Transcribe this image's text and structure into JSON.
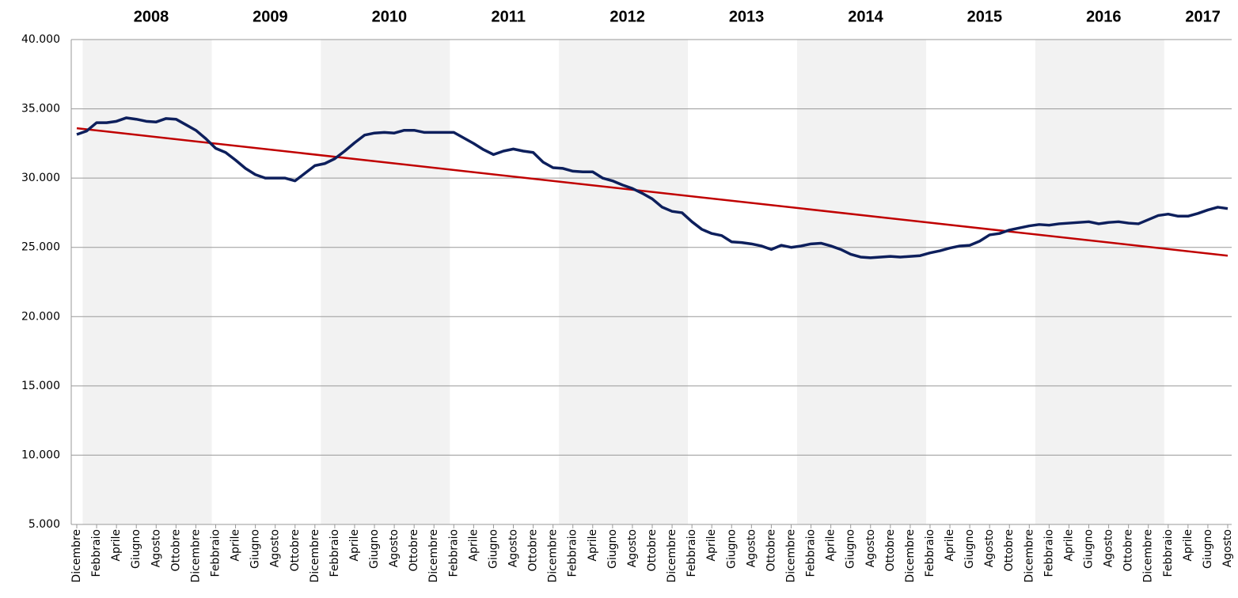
{
  "chart_data": {
    "type": "line",
    "year_labels": [
      "2008",
      "2009",
      "2010",
      "2011",
      "2012",
      "2013",
      "2014",
      "2015",
      "2016",
      "2017"
    ],
    "categories": [
      "Dicembre",
      null,
      "Febbraio",
      null,
      "Aprile",
      null,
      "Giugno",
      null,
      "Agosto",
      null,
      "Ottobre",
      null,
      "Dicembre",
      null,
      "Febbraio",
      null,
      "Aprile",
      null,
      "Giugno",
      null,
      "Agosto",
      null,
      "Ottobre",
      null,
      "Dicembre",
      null,
      "Febbraio",
      null,
      "Aprile",
      null,
      "Giugno",
      null,
      "Agosto",
      null,
      "Ottobre",
      null,
      "Dicembre",
      null,
      "Febbraio",
      null,
      "Aprile",
      null,
      "Giugno",
      null,
      "Agosto",
      null,
      "Ottobre",
      null,
      "Dicembre",
      null,
      "Febbraio",
      null,
      "Aprile",
      null,
      "Giugno",
      null,
      "Agosto",
      null,
      "Ottobre",
      null,
      "Dicembre",
      null,
      "Febbraio",
      null,
      "Aprile",
      null,
      "Giugno",
      null,
      "Agosto",
      null,
      "Ottobre",
      null,
      "Dicembre",
      null,
      "Febbraio",
      null,
      "Aprile",
      null,
      "Giugno",
      null,
      "Agosto",
      null,
      "Ottobre",
      null,
      "Dicembre",
      null,
      "Febbraio",
      null,
      "Aprile",
      null,
      "Giugno",
      null,
      "Agosto",
      null,
      "Ottobre",
      null,
      "Dicembre",
      null,
      "Febbraio",
      null,
      "Aprile",
      null,
      "Giugno",
      null,
      "Agosto",
      null,
      "Ottobre",
      null,
      "Dicembre",
      null,
      "Febbraio",
      null,
      "Aprile",
      null,
      "Giugno",
      null,
      "Agosto"
    ],
    "series": [
      {
        "color": "#0d1f5c",
        "values": [
          33150,
          33400,
          34000,
          34000,
          34100,
          34350,
          34250,
          34100,
          34050,
          34300,
          34250,
          33850,
          33450,
          32850,
          32150,
          31850,
          31300,
          30700,
          30250,
          30000,
          30000,
          30000,
          29800,
          30350,
          30900,
          31050,
          31400,
          31950,
          32550,
          33100,
          33250,
          33300,
          33250,
          33450,
          33450,
          33300,
          33300,
          33300,
          33300,
          32900,
          32500,
          32050,
          31700,
          31950,
          32100,
          31950,
          31850,
          31150,
          30750,
          30700,
          30500,
          30450,
          30450,
          30000,
          29800,
          29500,
          29250,
          28900,
          28500,
          27900,
          27600,
          27500,
          26850,
          26300,
          26000,
          25850,
          25400,
          25350,
          25250,
          25100,
          24850,
          25150,
          25000,
          25100,
          25250,
          25300,
          25100,
          24850,
          24500,
          24300,
          24250,
          24300,
          24350,
          24300,
          24350,
          24400,
          24600,
          24750,
          24950,
          25100,
          25150,
          25450,
          25900,
          26000,
          26250,
          26400,
          26550,
          26650,
          26600,
          26700,
          26750,
          26800,
          26850,
          26700,
          26800,
          26850,
          26750,
          26700,
          27000,
          27300,
          27400,
          27250,
          27250,
          27450,
          27700,
          27900,
          27800
        ]
      }
    ],
    "trendline": {
      "color": "#c00000",
      "start": 33600,
      "end": 24400
    },
    "ylim": [
      5000,
      40000
    ],
    "yticks": [
      {
        "value": 5000,
        "label": "5.000"
      },
      {
        "value": 10000,
        "label": "10.000"
      },
      {
        "value": 15000,
        "label": "15.000"
      },
      {
        "value": 20000,
        "label": "20.000"
      },
      {
        "value": 25000,
        "label": "25.000"
      },
      {
        "value": 30000,
        "label": "30.000"
      },
      {
        "value": 35000,
        "label": "35.000"
      },
      {
        "value": 40000,
        "label": "40.000"
      }
    ],
    "grid": true
  }
}
